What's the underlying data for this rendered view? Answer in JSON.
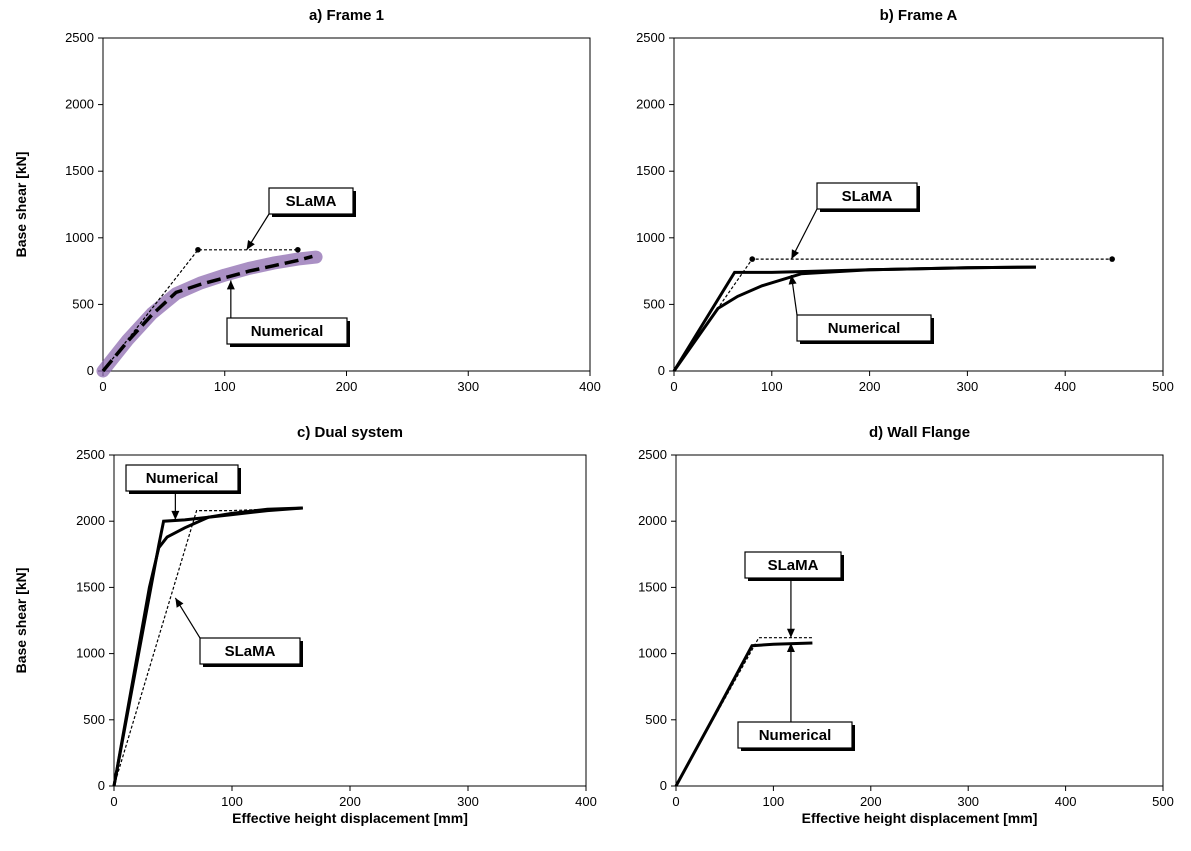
{
  "chart_data": [
    {
      "type": "line",
      "title": "a) Frame 1",
      "xlabel": "",
      "ylabel": "Base shear [kN]",
      "xlim": [
        0,
        400
      ],
      "ylim": [
        0,
        2500
      ],
      "xticks": [
        0,
        100,
        200,
        300,
        400
      ],
      "yticks": [
        0,
        500,
        1000,
        1500,
        2000,
        2500
      ],
      "grid": false,
      "series": [
        {
          "role": "numerical-band",
          "color": "#8e6bb0",
          "x": [
            0,
            20,
            40,
            60,
            80,
            100,
            120,
            140,
            160,
            175
          ],
          "y": [
            0,
            230,
            430,
            580,
            660,
            720,
            770,
            810,
            840,
            855
          ]
        },
        {
          "role": "numerical-dashed",
          "color": "#000000",
          "x": [
            0,
            20,
            40,
            60,
            80,
            100,
            120,
            140,
            160,
            172
          ],
          "y": [
            0,
            220,
            420,
            590,
            650,
            700,
            750,
            790,
            830,
            860
          ]
        },
        {
          "role": "slama",
          "color": "#000000",
          "x": [
            0,
            78,
            160
          ],
          "y": [
            0,
            910,
            910
          ]
        }
      ],
      "annotations": [
        {
          "text": "SLaMA",
          "points_to": [
            118,
            910
          ]
        },
        {
          "text": "Numerical",
          "points_to": [
            105,
            680
          ]
        }
      ]
    },
    {
      "type": "line",
      "title": "b) Frame A",
      "xlabel": "",
      "ylabel": "",
      "xlim": [
        0,
        500
      ],
      "ylim": [
        0,
        2500
      ],
      "xticks": [
        0,
        100,
        200,
        300,
        400,
        500
      ],
      "yticks": [
        0,
        500,
        1000,
        1500,
        2000,
        2500
      ],
      "grid": false,
      "series": [
        {
          "role": "numerical-solid",
          "color": "#000000",
          "x": [
            0,
            45,
            65,
            90,
            130,
            200,
            300,
            370
          ],
          "y": [
            0,
            470,
            560,
            640,
            730,
            760,
            775,
            780
          ]
        },
        {
          "role": "numerical-bilinear",
          "color": "#000000",
          "x": [
            0,
            62,
            100,
            200,
            300,
            370
          ],
          "y": [
            0,
            740,
            740,
            760,
            775,
            780
          ]
        },
        {
          "role": "slama",
          "color": "#000000",
          "x": [
            0,
            80,
            448
          ],
          "y": [
            0,
            840,
            840
          ]
        }
      ],
      "annotations": [
        {
          "text": "SLaMA",
          "points_to": [
            120,
            840
          ]
        },
        {
          "text": "Numerical",
          "points_to": [
            120,
            720
          ]
        }
      ]
    },
    {
      "type": "line",
      "title": "c) Dual system",
      "xlabel": "Effective height displacement [mm]",
      "ylabel": "Base shear [kN]",
      "xlim": [
        0,
        400
      ],
      "ylim": [
        0,
        2500
      ],
      "xticks": [
        0,
        100,
        200,
        300,
        400
      ],
      "yticks": [
        0,
        500,
        1000,
        1500,
        2000,
        2500
      ],
      "grid": false,
      "series": [
        {
          "role": "numerical-solid",
          "color": "#000000",
          "x": [
            0,
            10,
            20,
            30,
            38,
            45,
            60,
            80,
            100,
            130,
            160
          ],
          "y": [
            0,
            500,
            1000,
            1500,
            1800,
            1880,
            1950,
            2030,
            2060,
            2090,
            2100
          ]
        },
        {
          "role": "numerical-bilinear",
          "color": "#000000",
          "x": [
            0,
            38,
            42,
            60,
            80,
            100,
            130,
            160
          ],
          "y": [
            0,
            1820,
            2000,
            2010,
            2030,
            2050,
            2080,
            2100
          ]
        },
        {
          "role": "slama",
          "color": "#000000",
          "x": [
            0,
            70,
            100,
            158
          ],
          "y": [
            0,
            2080,
            2080,
            2100
          ]
        }
      ],
      "annotations": [
        {
          "text": "Numerical",
          "points_to": [
            52,
            2010
          ]
        },
        {
          "text": "SLaMA",
          "points_to": [
            52,
            1420
          ]
        }
      ]
    },
    {
      "type": "line",
      "title": "d) Wall Flange",
      "xlabel": "Effective height displacement [mm]",
      "ylabel": "",
      "xlim": [
        0,
        500
      ],
      "ylim": [
        0,
        2500
      ],
      "xticks": [
        0,
        100,
        200,
        300,
        400,
        500
      ],
      "yticks": [
        0,
        500,
        1000,
        1500,
        2000,
        2500
      ],
      "grid": false,
      "series": [
        {
          "role": "numerical-solid",
          "color": "#000000",
          "x": [
            0,
            40,
            78,
            100,
            140
          ],
          "y": [
            0,
            540,
            1060,
            1070,
            1080
          ]
        },
        {
          "role": "slama",
          "color": "#000000",
          "x": [
            0,
            85,
            140
          ],
          "y": [
            0,
            1120,
            1120
          ]
        }
      ],
      "annotations": [
        {
          "text": "SLaMA",
          "points_to": [
            118,
            1120
          ]
        },
        {
          "text": "Numerical",
          "points_to": [
            118,
            1080
          ]
        }
      ]
    }
  ]
}
